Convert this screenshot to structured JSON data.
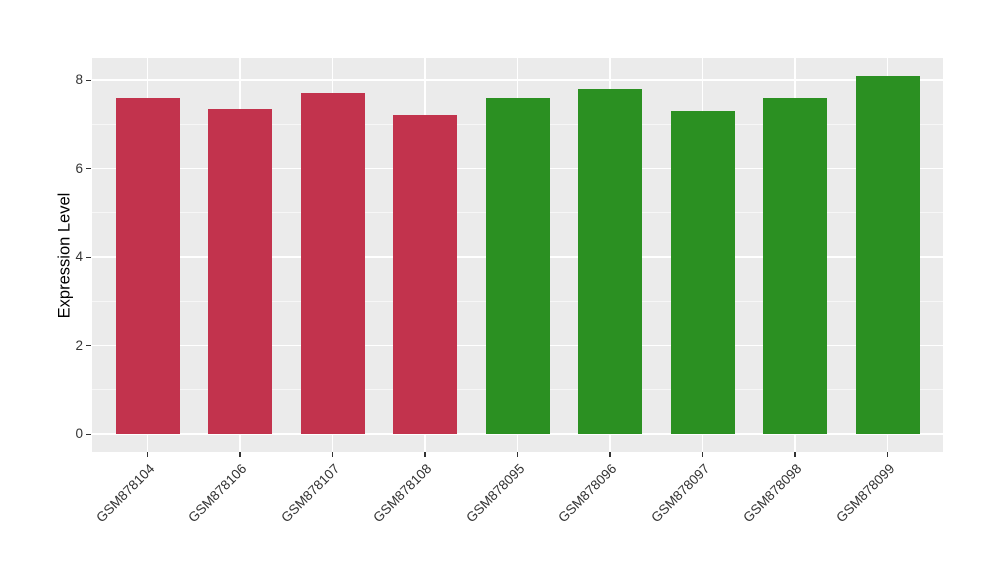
{
  "chart_data": {
    "type": "bar",
    "title": "",
    "xlabel": "",
    "ylabel": "Expression Level",
    "categories": [
      "GSM878104",
      "GSM878106",
      "GSM878107",
      "GSM878108",
      "GSM878095",
      "GSM878096",
      "GSM878097",
      "GSM878098",
      "GSM878099"
    ],
    "values": [
      7.6,
      7.35,
      7.7,
      7.2,
      7.6,
      7.8,
      7.3,
      7.6,
      8.1
    ],
    "groups": [
      "red",
      "red",
      "red",
      "red",
      "green",
      "green",
      "green",
      "green",
      "green"
    ],
    "group_colors": {
      "red": "#C2334D",
      "green": "#2B9022"
    },
    "ylim": [
      0,
      8.5
    ],
    "yticks": [
      0,
      2,
      4,
      6,
      8
    ],
    "yticks_minor": [
      1,
      3,
      5,
      7
    ],
    "grid": true,
    "legend_position": "none",
    "panel_bg": "#EBEBEB",
    "grid_color": "#FFFFFF",
    "tick_color": "#333333"
  }
}
